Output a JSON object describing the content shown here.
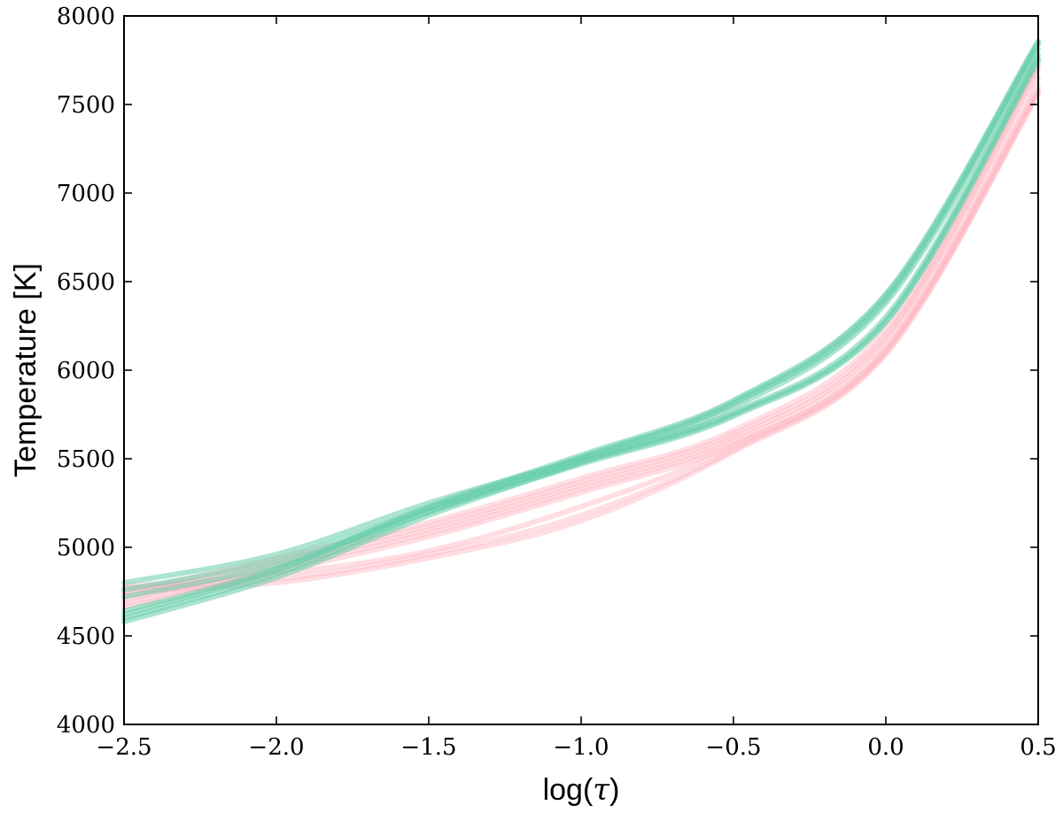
{
  "chart_data": {
    "type": "line",
    "xlabel": {
      "prefix": "log(",
      "symbol": "τ",
      "suffix": ")"
    },
    "ylabel": "Temperature [K]",
    "xlim": [
      -2.5,
      0.5
    ],
    "ylim": [
      4000,
      8000
    ],
    "x_ticks": [
      {
        "value": -2.5,
        "label": "−2.5"
      },
      {
        "value": -2.0,
        "label": "−2.0"
      },
      {
        "value": -1.5,
        "label": "−1.5"
      },
      {
        "value": -1.0,
        "label": "−1.0"
      },
      {
        "value": -0.5,
        "label": "−0.5"
      },
      {
        "value": 0.0,
        "label": "0.0"
      },
      {
        "value": 0.5,
        "label": "0.5"
      }
    ],
    "y_ticks": [
      {
        "value": 4000,
        "label": "4000"
      },
      {
        "value": 4500,
        "label": "4500"
      },
      {
        "value": 5000,
        "label": "5000"
      },
      {
        "value": 5500,
        "label": "5500"
      },
      {
        "value": 6000,
        "label": "6000"
      },
      {
        "value": 6500,
        "label": "6500"
      },
      {
        "value": 7000,
        "label": "7000"
      },
      {
        "value": 7500,
        "label": "7500"
      },
      {
        "value": 8000,
        "label": "8000"
      }
    ],
    "grid": false,
    "legend": "none",
    "colors": {
      "green": "#66cdaa",
      "pink": "#ffb6c1"
    },
    "series": [
      {
        "color": "green",
        "x": [
          -2.5,
          -2.0,
          -1.5,
          -1.0,
          -0.5,
          0.0,
          0.5
        ],
        "y": [
          4600,
          4850,
          5200,
          5500,
          5810,
          6400,
          7840
        ]
      },
      {
        "color": "green",
        "x": [
          -2.5,
          -2.0,
          -1.5,
          -1.0,
          -0.5,
          0.0,
          0.5
        ],
        "y": [
          4640,
          4880,
          5230,
          5520,
          5830,
          6430,
          7860
        ]
      },
      {
        "color": "green",
        "x": [
          -2.5,
          -2.0,
          -1.5,
          -1.0,
          -0.5,
          0.0,
          0.5
        ],
        "y": [
          4580,
          4830,
          5180,
          5480,
          5790,
          6380,
          7810
        ]
      },
      {
        "color": "green",
        "x": [
          -2.5,
          -2.0,
          -1.5,
          -1.0,
          -0.5,
          0.0,
          0.5
        ],
        "y": [
          4620,
          4870,
          5220,
          5510,
          5820,
          6420,
          7850
        ]
      },
      {
        "color": "green",
        "x": [
          -2.5,
          -2.0,
          -1.5,
          -1.0,
          -0.5,
          0.0,
          0.5
        ],
        "y": [
          4800,
          4960,
          5250,
          5500,
          5760,
          6300,
          7780
        ]
      },
      {
        "color": "green",
        "x": [
          -2.5,
          -2.0,
          -1.5,
          -1.0,
          -0.5,
          0.0,
          0.5
        ],
        "y": [
          4760,
          4930,
          5220,
          5480,
          5750,
          6280,
          7760
        ]
      },
      {
        "color": "green",
        "x": [
          -2.5,
          -2.0,
          -1.5,
          -1.0,
          -0.5,
          0.0,
          0.5
        ],
        "y": [
          4720,
          4900,
          5200,
          5470,
          5740,
          6270,
          7750
        ]
      },
      {
        "color": "pink",
        "x": [
          -2.5,
          -2.0,
          -1.5,
          -1.0,
          -0.5,
          0.0,
          0.5
        ],
        "y": [
          4700,
          4900,
          5100,
          5350,
          5620,
          6180,
          7700
        ]
      },
      {
        "color": "pink",
        "x": [
          -2.5,
          -2.0,
          -1.5,
          -1.0,
          -0.5,
          0.0,
          0.5
        ],
        "y": [
          4680,
          4880,
          5080,
          5330,
          5600,
          6150,
          7650
        ]
      },
      {
        "color": "pink",
        "x": [
          -2.5,
          -2.0,
          -1.5,
          -1.0,
          -0.5,
          0.0,
          0.5
        ],
        "y": [
          4720,
          4920,
          5120,
          5370,
          5640,
          6200,
          7720
        ]
      },
      {
        "color": "pink",
        "x": [
          -2.5,
          -2.0,
          -1.5,
          -1.0,
          -0.5,
          0.0,
          0.5
        ],
        "y": [
          4660,
          4860,
          5060,
          5310,
          5580,
          6120,
          7600
        ]
      },
      {
        "color": "pink",
        "x": [
          -2.5,
          -2.0,
          -1.5,
          -1.0,
          -0.5,
          0.0,
          0.5
        ],
        "y": [
          4740,
          4940,
          5140,
          5390,
          5660,
          6230,
          7730
        ]
      },
      {
        "color": "pink",
        "x": [
          -2.5,
          -2.0,
          -1.5,
          -1.0,
          -0.5,
          0.0,
          0.5
        ],
        "y": [
          4780,
          4850,
          4980,
          5230,
          5570,
          6110,
          7580
        ]
      },
      {
        "color": "pink",
        "x": [
          -2.5,
          -2.0,
          -1.5,
          -1.0,
          -0.5,
          0.0,
          0.5
        ],
        "y": [
          4770,
          4820,
          4960,
          5180,
          5550,
          6100,
          7570
        ]
      },
      {
        "color": "pink",
        "x": [
          -2.5,
          -2.0,
          -1.5,
          -1.0,
          -0.5,
          0.0,
          0.5
        ],
        "y": [
          4750,
          4800,
          4940,
          5150,
          5540,
          6090,
          7560
        ]
      }
    ]
  }
}
